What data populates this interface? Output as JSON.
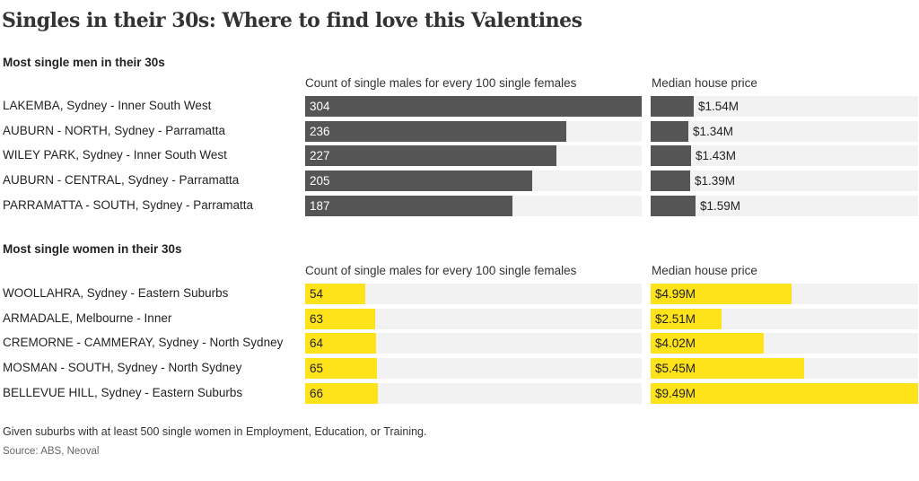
{
  "title": "Singles in their 30s: Where to find love this Valentines",
  "footnote": "Given suburbs with at least 500 single women in Employment, Education, or Training.",
  "source": "Source: ABS, Neoval",
  "colors": {
    "men_bar": "#555555",
    "women_bar": "#ffe31a",
    "track": "#f2f2f2"
  },
  "chart_data": [
    {
      "type": "bar",
      "section_title": "Most single men in their 30s",
      "count_header": "Count of single males for every 100 single females",
      "price_header": "Median house price",
      "categories": [
        "LAKEMBA, Sydney - Inner South West",
        "AUBURN - NORTH, Sydney - Parramatta",
        "WILEY PARK,  Sydney - Inner South West",
        "AUBURN - CENTRAL, Sydney - Parramatta",
        "PARRAMATTA - SOUTH, Sydney - Parramatta"
      ],
      "series": [
        {
          "values": [
            304,
            236,
            227,
            205,
            187
          ]
        },
        {
          "values": [
            1.54,
            1.34,
            1.43,
            1.39,
            1.59
          ],
          "labels": [
            "$1.54M",
            "$1.34M",
            "$1.43M",
            "$1.39M",
            "$1.59M"
          ]
        }
      ]
    },
    {
      "type": "bar",
      "section_title": "Most single women in their 30s",
      "count_header": "Count of single males for every 100 single females",
      "price_header": "Median house price",
      "categories": [
        "WOOLLAHRA, Sydney - Eastern Suburbs",
        "ARMADALE, Melbourne - Inner",
        "CREMORNE - CAMMERAY, Sydney - North Sydney",
        "MOSMAN - SOUTH, Sydney - North Sydney",
        "BELLEVUE HILL, Sydney - Eastern Suburbs"
      ],
      "series": [
        {
          "values": [
            54,
            63,
            64,
            65,
            66
          ]
        },
        {
          "values": [
            4.99,
            2.51,
            4.02,
            5.45,
            9.49
          ],
          "labels": [
            "$4.99M",
            "$2.51M",
            "$4.02M",
            "$5.45M",
            "$9.49M"
          ]
        }
      ]
    }
  ]
}
